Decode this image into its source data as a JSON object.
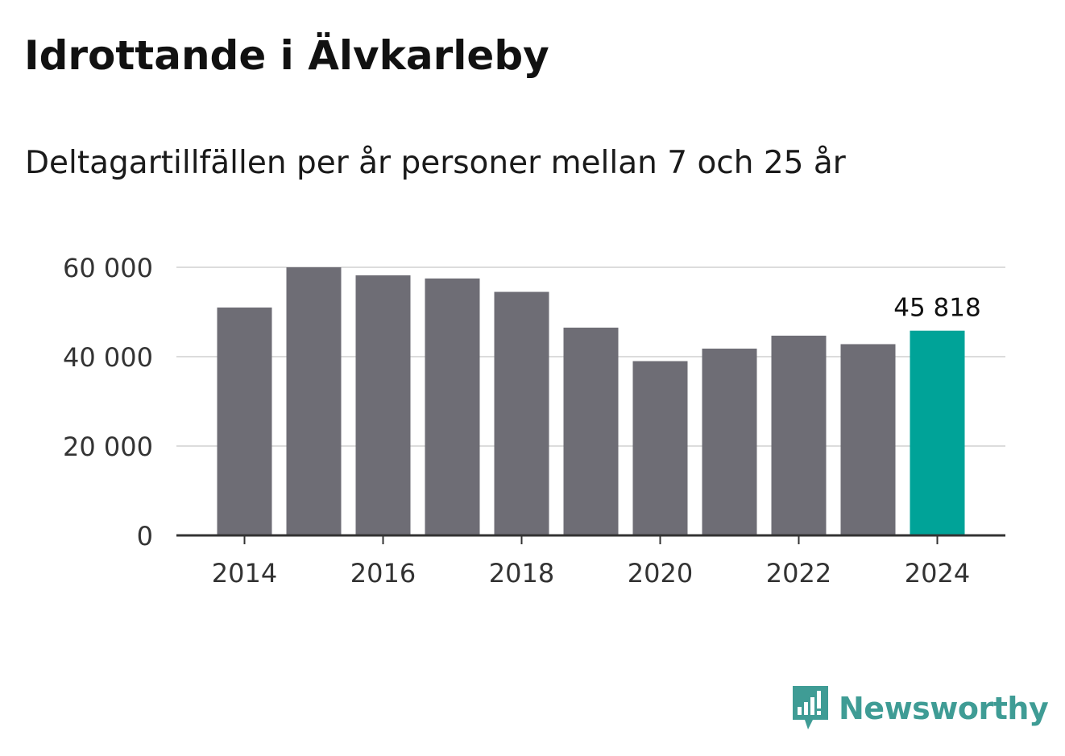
{
  "header": {
    "title": "Idrottande i Älvkarleby",
    "subtitle": "Deltagartillfällen per år personer mellan 7 och 25 år"
  },
  "chart_data": {
    "type": "bar",
    "categories": [
      "2014",
      "2015",
      "2016",
      "2017",
      "2018",
      "2019",
      "2020",
      "2021",
      "2022",
      "2023",
      "2024"
    ],
    "values": [
      51000,
      60000,
      58200,
      57500,
      54500,
      46500,
      39000,
      41800,
      44700,
      42800,
      45818
    ],
    "x_tick_labels": [
      "2014",
      "2016",
      "2018",
      "2020",
      "2022",
      "2024"
    ],
    "y_ticks": [
      0,
      20000,
      40000,
      60000
    ],
    "y_tick_labels": [
      "0",
      "20 000",
      "40 000",
      "60 000"
    ],
    "ylim": [
      0,
      60000
    ],
    "highlight_index": 10,
    "highlight_label": "45 818",
    "title": "Idrottande i Älvkarleby",
    "xlabel": "",
    "ylabel": "",
    "grid": true
  },
  "colors": {
    "bar": "#6e6d75",
    "highlight": "#00a398",
    "grid": "#dcdcdc",
    "axis": "#333333",
    "text": "#333333",
    "brand": "#3f9c95"
  },
  "brand": {
    "name": "Newsworthy",
    "icon": "newsworthy-logo-icon"
  }
}
